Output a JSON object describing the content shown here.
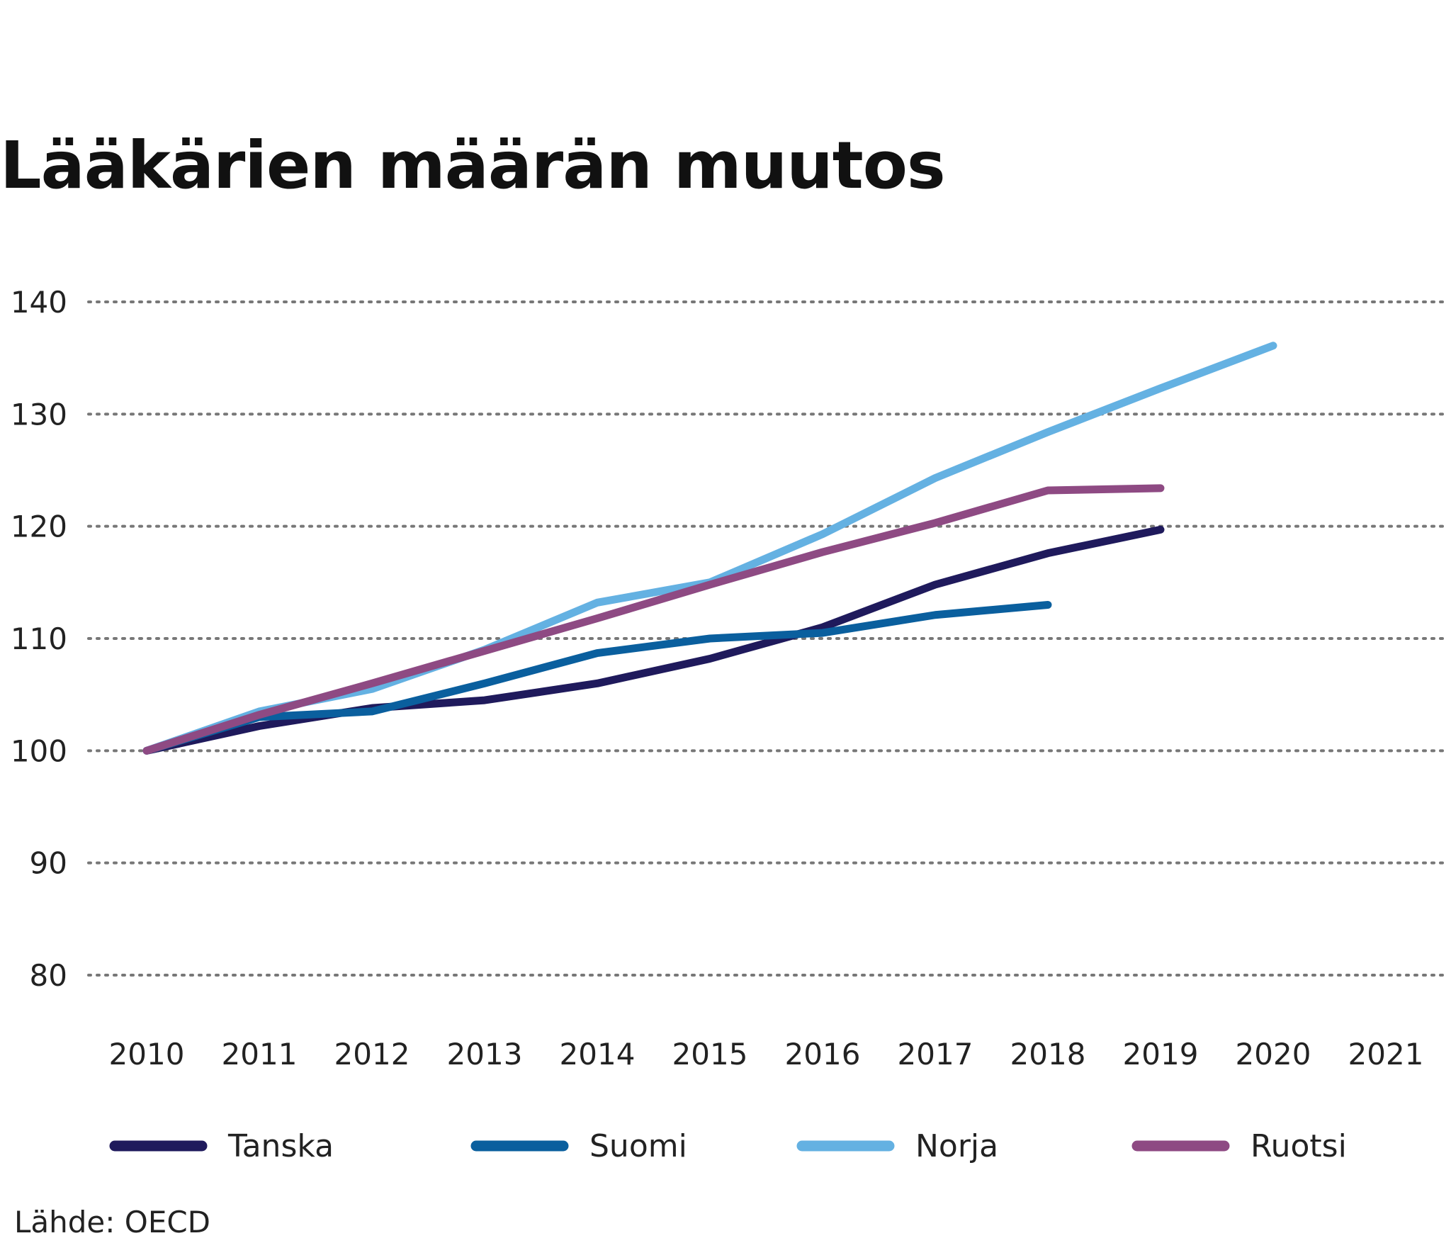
{
  "chart_data": {
    "type": "line",
    "title": "Lääkärien määrän muutos",
    "x": [
      "2010",
      "2011",
      "2012",
      "2013",
      "2014",
      "2015",
      "2016",
      "2017",
      "2018",
      "2019",
      "2020",
      "2021"
    ],
    "y_ticks": [
      80,
      90,
      100,
      110,
      120,
      130,
      140
    ],
    "ylim": [
      80,
      140
    ],
    "grid": true,
    "legend_position": "bottom",
    "series": [
      {
        "name": "Tanska",
        "color": "#1f1a5c",
        "values": [
          100,
          102.2,
          103.8,
          104.5,
          106,
          108.2,
          111,
          114.8,
          117.6,
          119.7,
          null,
          null
        ]
      },
      {
        "name": "Suomi",
        "color": "#0a5f9e",
        "values": [
          100,
          103,
          103.5,
          106,
          108.7,
          110,
          110.5,
          112.1,
          113,
          null,
          null,
          null
        ]
      },
      {
        "name": "Norja",
        "color": "#64b1e2",
        "values": [
          100,
          103.5,
          105.5,
          109,
          113.2,
          115,
          119.3,
          124.3,
          128.4,
          132.3,
          136.1,
          null
        ]
      },
      {
        "name": "Ruotsi",
        "color": "#8e4a83",
        "values": [
          100,
          103.2,
          106,
          108.9,
          111.8,
          114.8,
          117.7,
          120.3,
          123.2,
          123.4,
          null,
          null
        ]
      }
    ]
  },
  "source": "Lähde: OECD"
}
